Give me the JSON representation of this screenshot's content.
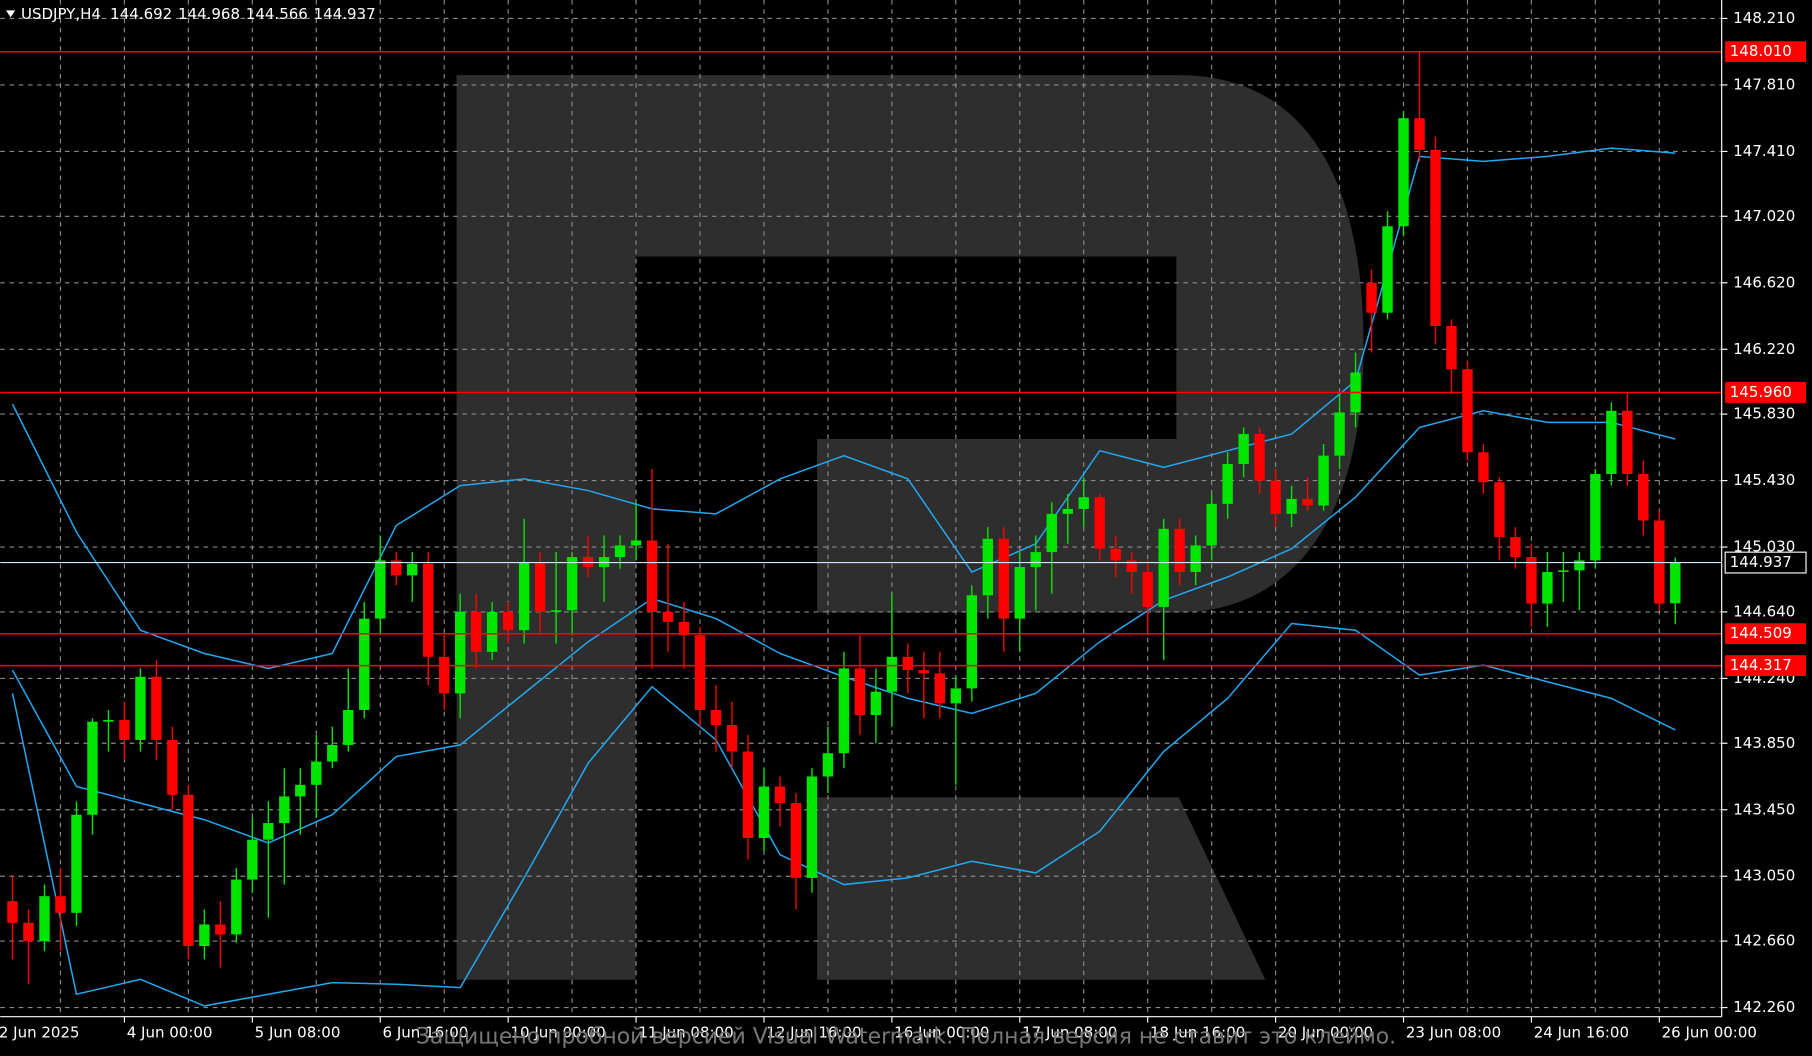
{
  "symbol": "USDJPY,H4",
  "watermark_text": "Защищено пробной версией Visual Watermark. Полная версия не ставит это клеймо.",
  "chart_data": {
    "type": "candlestick",
    "up_color": "#00e600",
    "down_color": "#ff0000",
    "grid": true,
    "open": [
      142.9,
      142.77,
      142.66,
      142.93,
      142.83,
      143.42,
      143.98,
      143.99,
      143.87,
      144.25,
      143.87,
      143.54,
      142.63,
      142.76,
      142.7,
      143.03,
      143.27,
      143.37,
      143.53,
      143.6,
      143.74,
      143.84,
      144.05,
      144.6,
      144.95,
      144.86,
      144.93,
      144.37,
      144.15,
      144.64,
      144.4,
      144.64,
      144.53,
      144.94,
      144.64,
      144.65,
      144.97,
      144.91,
      144.97,
      145.04,
      145.07,
      144.64,
      144.58,
      144.5,
      144.05,
      143.96,
      143.8,
      143.28,
      143.59,
      143.49,
      143.04,
      143.65,
      143.79,
      144.3,
      144.02,
      144.16,
      144.37,
      144.29,
      144.27,
      144.09,
      144.18,
      144.74,
      145.08,
      144.6,
      144.91,
      145.0,
      145.23,
      145.26,
      145.33,
      145.02,
      144.95,
      144.88,
      144.67,
      145.14,
      144.88,
      145.04,
      145.29,
      145.53,
      145.71,
      145.43,
      145.23,
      145.32,
      145.28,
      145.58,
      145.84,
      146.62,
      146.44,
      146.96,
      147.61,
      147.42,
      146.36,
      146.1,
      145.6,
      145.42,
      145.09,
      144.97,
      144.69,
      144.88,
      144.89,
      144.95,
      145.47,
      145.85,
      145.47,
      145.19,
      144.692
    ],
    "high": [
      143.05,
      142.85,
      143.0,
      143.1,
      143.5,
      144.0,
      144.05,
      144.1,
      144.3,
      144.35,
      143.95,
      143.6,
      142.85,
      142.9,
      143.1,
      143.4,
      143.5,
      143.7,
      143.7,
      143.9,
      143.95,
      144.3,
      144.7,
      145.1,
      145.0,
      145.0,
      145.0,
      144.5,
      144.75,
      144.75,
      144.7,
      144.7,
      145.2,
      145.0,
      145.0,
      145.0,
      145.1,
      145.1,
      145.1,
      145.3,
      145.5,
      145.05,
      144.7,
      144.55,
      144.2,
      144.1,
      143.9,
      143.7,
      143.65,
      143.55,
      143.7,
      143.95,
      144.4,
      144.5,
      144.3,
      144.75,
      144.45,
      144.4,
      144.4,
      144.25,
      144.8,
      145.15,
      145.15,
      145.0,
      145.1,
      145.3,
      145.35,
      145.45,
      145.35,
      145.1,
      145.0,
      144.95,
      145.2,
      145.2,
      145.1,
      145.35,
      145.6,
      145.75,
      145.75,
      145.5,
      145.4,
      145.45,
      145.65,
      145.95,
      146.2,
      146.7,
      147.05,
      147.65,
      148.01,
      147.5,
      146.4,
      146.15,
      145.65,
      145.45,
      145.15,
      145.05,
      145.0,
      145.0,
      145.0,
      145.5,
      145.9,
      145.96,
      145.55,
      145.25,
      144.968
    ],
    "low": [
      142.55,
      142.4,
      142.6,
      142.6,
      142.75,
      143.3,
      143.8,
      143.75,
      143.8,
      143.75,
      143.45,
      142.55,
      142.55,
      142.5,
      142.65,
      142.95,
      142.8,
      143.0,
      143.3,
      143.4,
      143.7,
      143.8,
      144.0,
      144.5,
      144.8,
      144.7,
      144.2,
      144.05,
      144.0,
      144.3,
      144.35,
      144.45,
      144.45,
      144.5,
      144.45,
      144.5,
      144.85,
      144.7,
      144.9,
      144.95,
      144.3,
      144.4,
      144.3,
      143.95,
      143.8,
      143.7,
      143.15,
      143.2,
      143.35,
      142.85,
      142.95,
      143.55,
      143.7,
      143.9,
      143.85,
      143.95,
      144.15,
      144.0,
      144.0,
      143.6,
      144.1,
      144.6,
      144.4,
      144.4,
      144.65,
      144.75,
      145.05,
      145.15,
      144.95,
      144.85,
      144.75,
      144.5,
      144.35,
      144.8,
      144.8,
      144.95,
      145.2,
      145.45,
      145.35,
      145.15,
      145.15,
      145.25,
      145.25,
      145.5,
      145.75,
      146.2,
      146.4,
      146.9,
      147.35,
      146.25,
      145.95,
      145.55,
      145.35,
      144.95,
      144.9,
      144.55,
      144.55,
      144.7,
      144.65,
      144.9,
      145.4,
      145.4,
      145.1,
      144.65,
      144.566
    ],
    "close": [
      142.77,
      142.66,
      142.93,
      142.83,
      143.42,
      143.98,
      143.99,
      143.87,
      144.25,
      143.87,
      143.54,
      142.63,
      142.76,
      142.7,
      143.03,
      143.27,
      143.37,
      143.53,
      143.6,
      143.74,
      143.84,
      144.05,
      144.6,
      144.95,
      144.86,
      144.93,
      144.37,
      144.15,
      144.64,
      144.4,
      144.64,
      144.53,
      144.94,
      144.64,
      144.65,
      144.97,
      144.91,
      144.97,
      145.04,
      145.07,
      144.64,
      144.58,
      144.5,
      144.05,
      143.96,
      143.8,
      143.28,
      143.59,
      143.49,
      143.04,
      143.65,
      143.79,
      144.3,
      144.02,
      144.16,
      144.37,
      144.29,
      144.27,
      144.09,
      144.18,
      144.74,
      145.08,
      144.6,
      144.91,
      145.0,
      145.23,
      145.26,
      145.33,
      145.02,
      144.95,
      144.88,
      144.67,
      145.14,
      144.88,
      145.04,
      145.29,
      145.53,
      145.71,
      145.43,
      145.23,
      145.32,
      145.28,
      145.58,
      145.84,
      146.08,
      146.44,
      146.96,
      147.61,
      147.42,
      146.36,
      146.1,
      145.6,
      145.42,
      145.09,
      144.97,
      144.69,
      144.88,
      144.89,
      144.95,
      145.47,
      145.85,
      145.47,
      145.19,
      144.69,
      144.937
    ],
    "series": [
      {
        "color": "#22a8f0",
        "x": [
          0,
          4,
          8,
          12,
          16,
          20,
          24,
          28,
          32,
          36,
          40,
          44,
          48,
          52,
          56,
          60,
          64,
          68,
          72,
          76,
          80,
          84,
          88,
          92,
          96,
          100,
          104
        ],
        "values": [
          145.89,
          145.12,
          144.53,
          144.39,
          144.3,
          144.39,
          145.16,
          145.4,
          145.44,
          145.37,
          145.26,
          145.23,
          145.44,
          145.58,
          145.44,
          144.88,
          145.05,
          145.61,
          145.51,
          145.61,
          145.71,
          146.03,
          147.38,
          147.35,
          147.38,
          147.43,
          147.4
        ]
      },
      {
        "color": "#22a8f0",
        "x": [
          0,
          4,
          8,
          12,
          16,
          20,
          24,
          28,
          32,
          36,
          40,
          44,
          48,
          52,
          56,
          60,
          64,
          68,
          72,
          76,
          80,
          84,
          88,
          92,
          96,
          100,
          104
        ],
        "values": [
          144.29,
          143.59,
          143.49,
          143.39,
          143.25,
          143.42,
          143.77,
          143.84,
          144.15,
          144.46,
          144.72,
          144.6,
          144.39,
          144.25,
          144.12,
          144.03,
          144.15,
          144.46,
          144.71,
          144.85,
          145.02,
          145.33,
          145.75,
          145.85,
          145.78,
          145.78,
          145.68
        ]
      },
      {
        "color": "#22a8f0",
        "x": [
          0,
          4,
          8,
          12,
          16,
          20,
          24,
          28,
          32,
          36,
          40,
          44,
          48,
          52,
          56,
          60,
          64,
          68,
          72,
          76,
          80,
          84,
          88,
          92,
          96,
          100,
          104
        ],
        "values": [
          144.15,
          142.34,
          142.43,
          142.27,
          142.34,
          142.41,
          142.4,
          142.38,
          143.04,
          143.73,
          144.19,
          143.87,
          143.18,
          143.0,
          143.04,
          143.14,
          143.07,
          143.32,
          143.8,
          144.12,
          144.57,
          144.53,
          144.26,
          144.32,
          144.22,
          144.12,
          143.93
        ]
      }
    ],
    "xlim": [
      -0.77,
      106.9
    ],
    "ylim": [
      142.205,
      148.321
    ],
    "xticks": [
      {
        "value": -1,
        "label": "2 Jun 2025"
      },
      {
        "value": 7,
        "label": "4 Jun 00:00"
      },
      {
        "value": 15,
        "label": "5 Jun 08:00"
      },
      {
        "value": 23,
        "label": "6 Jun 16:00"
      },
      {
        "value": 31,
        "label": "10 Jun 00:00"
      },
      {
        "value": 39,
        "label": "11 Jun 08:00"
      },
      {
        "value": 47,
        "label": "12 Jun 16:00"
      },
      {
        "value": 55,
        "label": "16 Jun 00:00"
      },
      {
        "value": 63,
        "label": "17 Jun 08:00"
      },
      {
        "value": 71,
        "label": "18 Jun 16:00"
      },
      {
        "value": 79,
        "label": "20 Jun 00:00"
      },
      {
        "value": 87,
        "label": "23 Jun 08:00"
      },
      {
        "value": 95,
        "label": "24 Jun 16:00"
      },
      {
        "value": 103,
        "label": "26 Jun 00:00"
      }
    ],
    "yticks": [
      {
        "value": 148.21,
        "label": "148.210"
      },
      {
        "value": 147.81,
        "label": "147.810"
      },
      {
        "value": 147.41,
        "label": "147.410"
      },
      {
        "value": 147.02,
        "label": "147.020"
      },
      {
        "value": 146.62,
        "label": "146.620"
      },
      {
        "value": 146.22,
        "label": "146.220"
      },
      {
        "value": 145.83,
        "label": "145.830"
      },
      {
        "value": 145.43,
        "label": "145.430"
      },
      {
        "value": 145.03,
        "label": "145.030"
      },
      {
        "value": 144.64,
        "label": "144.640"
      },
      {
        "value": 144.24,
        "label": "144.240"
      },
      {
        "value": 143.85,
        "label": "143.850"
      },
      {
        "value": 143.45,
        "label": "143.450"
      },
      {
        "value": 143.05,
        "label": "143.050"
      },
      {
        "value": 142.66,
        "label": "142.660"
      },
      {
        "value": 142.26,
        "label": "142.260"
      }
    ],
    "levels": [
      {
        "value": 148.01,
        "label": "148.010"
      },
      {
        "value": 145.96,
        "label": "145.960"
      },
      144.509,
      144.317
    ],
    "level_color": "#ff0000"
  }
}
